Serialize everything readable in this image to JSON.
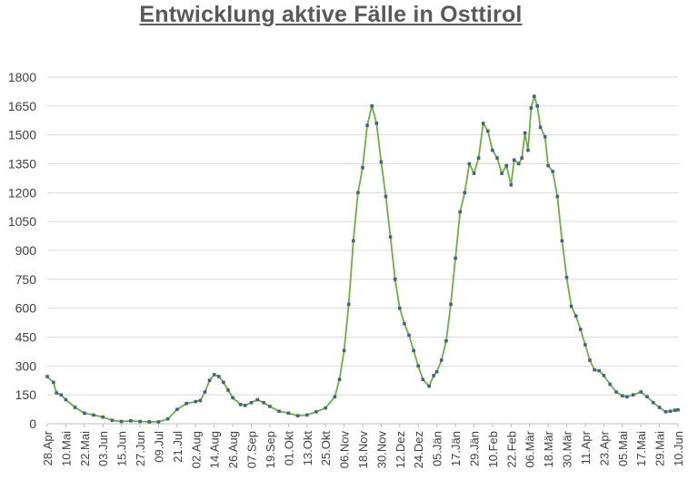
{
  "chart_data": {
    "type": "line",
    "title": "Entwicklung aktive Fälle in Osttirol",
    "xlabel": "",
    "ylabel": "",
    "ylim": [
      0,
      1800
    ],
    "yticks": [
      0,
      150,
      300,
      450,
      600,
      750,
      900,
      1050,
      1200,
      1350,
      1500,
      1650,
      1800
    ],
    "grid": "horizontal",
    "legend": "none",
    "x_tick_labels": [
      "28.Apr",
      "10.Mai",
      "22.Mai",
      "03.Jun",
      "15.Jun",
      "27.Jun",
      "09.Jul",
      "21.Jul",
      "02.Aug",
      "14.Aug",
      "26.Aug",
      "07.Sep",
      "19.Sep",
      "01.Okt",
      "13.Okt",
      "25.Okt",
      "06.Nov",
      "18.Nov",
      "30.Nov",
      "12.Dez",
      "24.Dez",
      "05.Jän",
      "17.Jän",
      "29.Jän",
      "10.Feb",
      "22.Feb",
      "06.Mär",
      "18.Mär",
      "30.Mär",
      "11.Apr",
      "23.Apr",
      "05.Mai",
      "17.Mai",
      "29.Mai",
      "10.Jun"
    ],
    "x_start": "2020-04-28",
    "x_end": "2021-06-10",
    "series": [
      {
        "color_line": "#70ad47",
        "color_marker": "#41657f",
        "points": [
          [
            "2020-04-28",
            245
          ],
          [
            "2020-05-02",
            215
          ],
          [
            "2020-05-04",
            160
          ],
          [
            "2020-05-07",
            150
          ],
          [
            "2020-05-10",
            125
          ],
          [
            "2020-05-16",
            85
          ],
          [
            "2020-05-22",
            55
          ],
          [
            "2020-05-28",
            45
          ],
          [
            "2020-06-03",
            35
          ],
          [
            "2020-06-09",
            18
          ],
          [
            "2020-06-15",
            12
          ],
          [
            "2020-06-21",
            15
          ],
          [
            "2020-06-27",
            12
          ],
          [
            "2020-07-03",
            10
          ],
          [
            "2020-07-09",
            10
          ],
          [
            "2020-07-15",
            25
          ],
          [
            "2020-07-21",
            75
          ],
          [
            "2020-07-27",
            105
          ],
          [
            "2020-08-02",
            115
          ],
          [
            "2020-08-05",
            120
          ],
          [
            "2020-08-08",
            165
          ],
          [
            "2020-08-11",
            225
          ],
          [
            "2020-08-14",
            255
          ],
          [
            "2020-08-17",
            245
          ],
          [
            "2020-08-20",
            215
          ],
          [
            "2020-08-23",
            175
          ],
          [
            "2020-08-26",
            135
          ],
          [
            "2020-08-31",
            100
          ],
          [
            "2020-09-03",
            95
          ],
          [
            "2020-09-07",
            110
          ],
          [
            "2020-09-11",
            125
          ],
          [
            "2020-09-15",
            110
          ],
          [
            "2020-09-19",
            90
          ],
          [
            "2020-09-25",
            65
          ],
          [
            "2020-10-01",
            55
          ],
          [
            "2020-10-07",
            42
          ],
          [
            "2020-10-13",
            45
          ],
          [
            "2020-10-19",
            62
          ],
          [
            "2020-10-25",
            82
          ],
          [
            "2020-10-31",
            140
          ],
          [
            "2020-11-03",
            230
          ],
          [
            "2020-11-06",
            380
          ],
          [
            "2020-11-09",
            620
          ],
          [
            "2020-11-12",
            950
          ],
          [
            "2020-11-15",
            1200
          ],
          [
            "2020-11-18",
            1330
          ],
          [
            "2020-11-21",
            1550
          ],
          [
            "2020-11-24",
            1650
          ],
          [
            "2020-11-27",
            1560
          ],
          [
            "2020-11-30",
            1360
          ],
          [
            "2020-12-03",
            1180
          ],
          [
            "2020-12-06",
            970
          ],
          [
            "2020-12-09",
            750
          ],
          [
            "2020-12-12",
            600
          ],
          [
            "2020-12-15",
            520
          ],
          [
            "2020-12-18",
            460
          ],
          [
            "2020-12-21",
            380
          ],
          [
            "2020-12-24",
            300
          ],
          [
            "2020-12-27",
            230
          ],
          [
            "2020-12-31",
            195
          ],
          [
            "2021-01-03",
            250
          ],
          [
            "2021-01-05",
            270
          ],
          [
            "2021-01-08",
            330
          ],
          [
            "2021-01-11",
            430
          ],
          [
            "2021-01-14",
            620
          ],
          [
            "2021-01-17",
            860
          ],
          [
            "2021-01-20",
            1100
          ],
          [
            "2021-01-23",
            1200
          ],
          [
            "2021-01-26",
            1350
          ],
          [
            "2021-01-29",
            1300
          ],
          [
            "2021-02-01",
            1380
          ],
          [
            "2021-02-04",
            1560
          ],
          [
            "2021-02-07",
            1520
          ],
          [
            "2021-02-10",
            1420
          ],
          [
            "2021-02-13",
            1380
          ],
          [
            "2021-02-16",
            1300
          ],
          [
            "2021-02-19",
            1340
          ],
          [
            "2021-02-22",
            1240
          ],
          [
            "2021-02-24",
            1370
          ],
          [
            "2021-02-27",
            1350
          ],
          [
            "2021-03-01",
            1380
          ],
          [
            "2021-03-03",
            1510
          ],
          [
            "2021-03-05",
            1420
          ],
          [
            "2021-03-07",
            1640
          ],
          [
            "2021-03-09",
            1700
          ],
          [
            "2021-03-11",
            1650
          ],
          [
            "2021-03-13",
            1540
          ],
          [
            "2021-03-16",
            1490
          ],
          [
            "2021-03-18",
            1340
          ],
          [
            "2021-03-21",
            1310
          ],
          [
            "2021-03-24",
            1180
          ],
          [
            "2021-03-27",
            950
          ],
          [
            "2021-03-30",
            760
          ],
          [
            "2021-04-02",
            610
          ],
          [
            "2021-04-05",
            560
          ],
          [
            "2021-04-08",
            490
          ],
          [
            "2021-04-11",
            410
          ],
          [
            "2021-04-14",
            330
          ],
          [
            "2021-04-17",
            280
          ],
          [
            "2021-04-20",
            275
          ],
          [
            "2021-04-23",
            250
          ],
          [
            "2021-04-27",
            205
          ],
          [
            "2021-05-01",
            165
          ],
          [
            "2021-05-05",
            145
          ],
          [
            "2021-05-08",
            140
          ],
          [
            "2021-05-12",
            150
          ],
          [
            "2021-05-17",
            165
          ],
          [
            "2021-05-21",
            140
          ],
          [
            "2021-05-25",
            110
          ],
          [
            "2021-05-29",
            85
          ],
          [
            "2021-06-02",
            62
          ],
          [
            "2021-06-05",
            65
          ],
          [
            "2021-06-08",
            70
          ],
          [
            "2021-06-10",
            72
          ]
        ]
      }
    ]
  }
}
